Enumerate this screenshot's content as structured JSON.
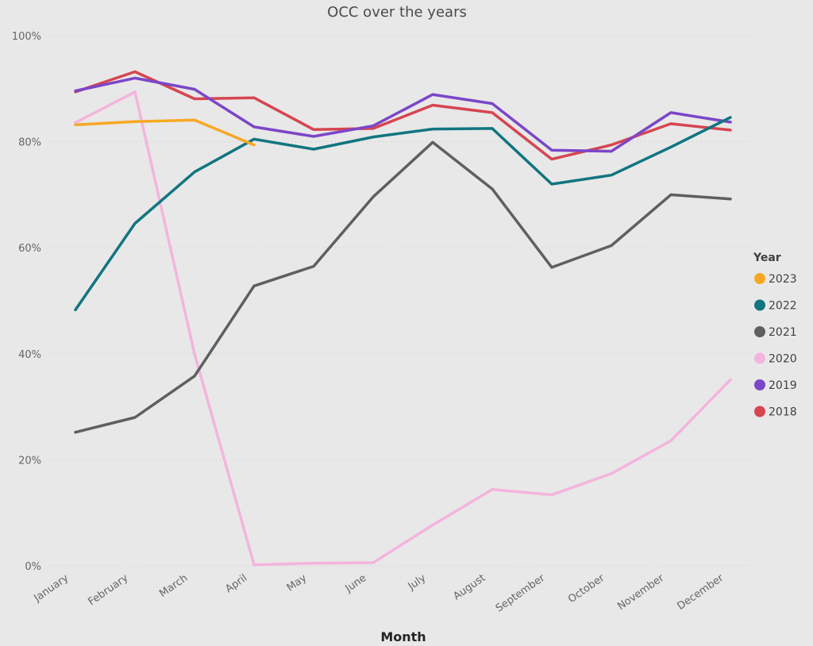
{
  "chart_data": {
    "type": "line",
    "title": "OCC over the years",
    "xlabel": "Month",
    "ylabel": "",
    "categories": [
      "January",
      "February",
      "March",
      "April",
      "May",
      "June",
      "July",
      "August",
      "September",
      "October",
      "November",
      "December"
    ],
    "y_ticks": [
      "0%",
      "20%",
      "40%",
      "60%",
      "80%",
      "100%"
    ],
    "ylim": [
      0,
      100
    ],
    "grid": true,
    "legend": {
      "title": "Year",
      "position": "right"
    },
    "series": [
      {
        "name": "2023",
        "color": "#f7a823",
        "values": [
          83.2,
          83.8,
          84.1,
          79.4,
          null,
          null,
          null,
          null,
          null,
          null,
          null,
          null
        ]
      },
      {
        "name": "2022",
        "color": "#117580",
        "values": [
          48.3,
          64.6,
          74.3,
          80.5,
          78.6,
          80.9,
          82.4,
          82.5,
          72.0,
          73.7,
          79.0,
          84.6
        ]
      },
      {
        "name": "2021",
        "color": "#5f5f5f",
        "values": [
          25.2,
          28.0,
          35.8,
          52.8,
          56.5,
          69.6,
          79.9,
          71.1,
          56.3,
          60.4,
          70.0,
          69.2
        ]
      },
      {
        "name": "2020",
        "color": "#f4b4dd",
        "values": [
          83.6,
          89.4,
          40.0,
          0.2,
          0.5,
          0.6,
          7.7,
          14.4,
          13.4,
          17.4,
          23.6,
          35.1
        ]
      },
      {
        "name": "2019",
        "color": "#7b46c8",
        "values": [
          89.6,
          92.0,
          89.9,
          82.8,
          81.0,
          83.0,
          88.9,
          87.2,
          78.4,
          78.2,
          85.5,
          83.7
        ]
      },
      {
        "name": "2018",
        "color": "#d64550",
        "values": [
          89.4,
          93.2,
          88.1,
          88.3,
          82.3,
          82.5,
          86.9,
          85.5,
          76.7,
          79.4,
          83.4,
          82.2
        ]
      }
    ]
  }
}
